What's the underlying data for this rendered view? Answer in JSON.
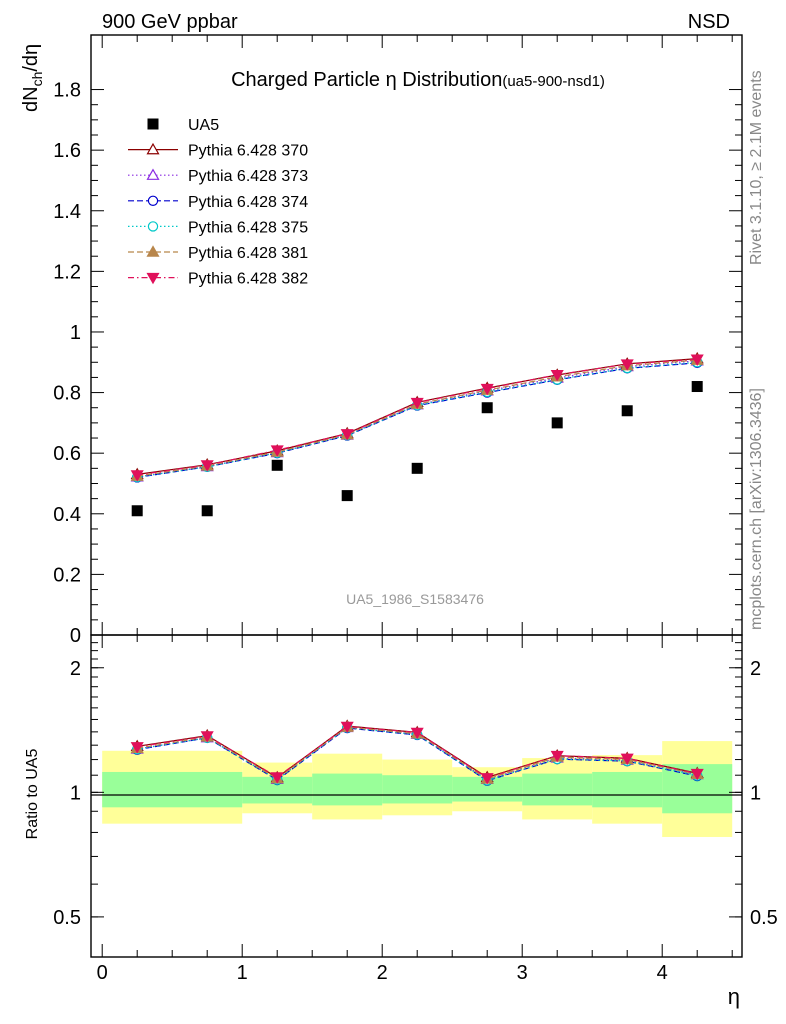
{
  "header": {
    "left": "900 GeV ppbar",
    "right": "NSD"
  },
  "side_labels": {
    "rivet": "Rivet 3.1.10, ≥ 2.1M events",
    "mcplots": "mcplots.cern.ch [arXiv:1306.3436]"
  },
  "chart_data": [
    {
      "type": "scatter",
      "title": "Charged Particle η Distribution",
      "title_suffix": "(ua5-900-nsd1)",
      "watermark": "UA5_1986_S1583476",
      "ylabel": "dN_ch/dη",
      "ylim": [
        0,
        1.98
      ],
      "y_ticks": [
        0,
        0.2,
        0.4,
        0.6,
        0.8,
        1,
        1.2,
        1.4,
        1.6,
        1.8
      ],
      "y_tick_labels": [
        "0",
        "0.2",
        "0.4",
        "0.6",
        "0.8",
        "1",
        "1.2",
        "1.4",
        "1.6",
        "1.8"
      ],
      "x": [
        0.25,
        0.75,
        1.25,
        1.75,
        2.25,
        2.75,
        3.25,
        3.75,
        4.25
      ],
      "legend_position": "top-left",
      "series": [
        {
          "name": "UA5",
          "marker": "square",
          "color": "#000000",
          "values": [
            0.41,
            0.41,
            0.56,
            0.46,
            0.55,
            0.75,
            0.7,
            0.74,
            0.82
          ]
        },
        {
          "name": "Pythia 6.428 370",
          "marker": "triangle-open",
          "color": "#8b0000",
          "dash": "solid",
          "values": [
            0.53,
            0.562,
            0.608,
            0.665,
            0.768,
            0.815,
            0.858,
            0.895,
            0.912
          ]
        },
        {
          "name": "Pythia 6.428 373",
          "marker": "triangle-open",
          "color": "#8a2be2",
          "dash": "dotted",
          "values": [
            0.522,
            0.556,
            0.602,
            0.66,
            0.76,
            0.806,
            0.848,
            0.886,
            0.905
          ]
        },
        {
          "name": "Pythia 6.428 374",
          "marker": "circle-open",
          "color": "#0000cd",
          "dash": "dashed",
          "values": [
            0.52,
            0.555,
            0.6,
            0.658,
            0.757,
            0.8,
            0.842,
            0.88,
            0.898
          ]
        },
        {
          "name": "Pythia 6.428 375",
          "marker": "circle-open",
          "color": "#00c8c8",
          "dash": "dotted",
          "values": [
            0.521,
            0.555,
            0.601,
            0.659,
            0.758,
            0.802,
            0.843,
            0.881,
            0.9
          ]
        },
        {
          "name": "Pythia 6.428 381",
          "marker": "triangle-filled",
          "color": "#b8864b",
          "dash": "dashed",
          "values": [
            0.524,
            0.558,
            0.604,
            0.661,
            0.762,
            0.808,
            0.852,
            0.889,
            0.907
          ]
        },
        {
          "name": "Pythia 6.428 382",
          "marker": "triangle-down-filled",
          "color": "#e0105a",
          "dash": "dashdot",
          "values": [
            0.528,
            0.561,
            0.61,
            0.664,
            0.767,
            0.813,
            0.859,
            0.894,
            0.91
          ]
        }
      ]
    },
    {
      "type": "line",
      "ylabel": "Ratio to UA5",
      "xlabel": "η",
      "y_scale": "log",
      "ylim": [
        0.4,
        2.4
      ],
      "xlim": [
        -0.08,
        4.57
      ],
      "y_ticks": [
        0.5,
        1,
        2
      ],
      "y_tick_labels": [
        "0.5",
        "1",
        "2"
      ],
      "x_ticks": [
        0,
        1,
        2,
        3,
        4
      ],
      "x_tick_labels": [
        "0",
        "1",
        "2",
        "3",
        "4"
      ],
      "band_bins": [
        {
          "x0": 0.0,
          "x1": 1.0,
          "inner": [
            0.92,
            1.12
          ],
          "outer": [
            0.84,
            1.26
          ]
        },
        {
          "x0": 1.0,
          "x1": 1.5,
          "inner": [
            0.94,
            1.09
          ],
          "outer": [
            0.89,
            1.18
          ]
        },
        {
          "x0": 1.5,
          "x1": 2.0,
          "inner": [
            0.93,
            1.11
          ],
          "outer": [
            0.86,
            1.24
          ]
        },
        {
          "x0": 2.0,
          "x1": 2.5,
          "inner": [
            0.94,
            1.1
          ],
          "outer": [
            0.88,
            1.2
          ]
        },
        {
          "x0": 2.5,
          "x1": 3.0,
          "inner": [
            0.95,
            1.09
          ],
          "outer": [
            0.9,
            1.15
          ]
        },
        {
          "x0": 3.0,
          "x1": 3.5,
          "inner": [
            0.93,
            1.11
          ],
          "outer": [
            0.86,
            1.21
          ]
        },
        {
          "x0": 3.5,
          "x1": 4.0,
          "inner": [
            0.92,
            1.12
          ],
          "outer": [
            0.84,
            1.23
          ]
        },
        {
          "x0": 4.0,
          "x1": 4.5,
          "inner": [
            0.89,
            1.17
          ],
          "outer": [
            0.78,
            1.33
          ]
        }
      ],
      "x": [
        0.25,
        0.75,
        1.25,
        1.75,
        2.25,
        2.75,
        3.25,
        3.75,
        4.25
      ],
      "series": [
        {
          "name": "Pythia 6.428 370",
          "values": [
            1.292,
            1.371,
            1.086,
            1.446,
            1.396,
            1.087,
            1.226,
            1.209,
            1.112
          ]
        },
        {
          "name": "Pythia 6.428 373",
          "values": [
            1.273,
            1.356,
            1.075,
            1.435,
            1.382,
            1.075,
            1.211,
            1.197,
            1.104
          ]
        },
        {
          "name": "Pythia 6.428 374",
          "values": [
            1.268,
            1.354,
            1.071,
            1.43,
            1.376,
            1.067,
            1.203,
            1.189,
            1.095
          ]
        },
        {
          "name": "Pythia 6.428 375",
          "values": [
            1.271,
            1.354,
            1.073,
            1.433,
            1.378,
            1.069,
            1.204,
            1.191,
            1.098
          ]
        },
        {
          "name": "Pythia 6.428 381",
          "values": [
            1.278,
            1.361,
            1.079,
            1.437,
            1.385,
            1.077,
            1.217,
            1.201,
            1.106
          ]
        },
        {
          "name": "Pythia 6.428 382",
          "values": [
            1.288,
            1.368,
            1.089,
            1.443,
            1.395,
            1.084,
            1.227,
            1.208,
            1.11
          ]
        }
      ]
    }
  ]
}
